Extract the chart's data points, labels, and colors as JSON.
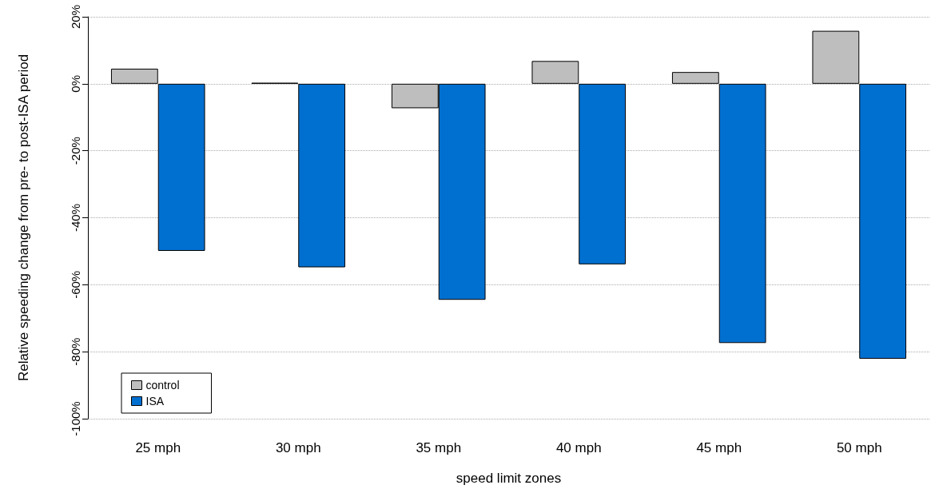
{
  "chart_data": {
    "type": "bar",
    "xlabel": "speed limit zones",
    "ylabel": "Relative speeding change from pre- to post-ISA period",
    "categories": [
      "25 mph",
      "30 mph",
      "35 mph",
      "40 mph",
      "45 mph",
      "50 mph"
    ],
    "series": [
      {
        "name": "control",
        "color": "#bebebe",
        "values": [
          4.5,
          0.3,
          -7.3,
          6.8,
          3.5,
          15.8
        ]
      },
      {
        "name": "ISA",
        "color": "#0070d0",
        "values": [
          -49.9,
          -54.8,
          -64.5,
          -53.9,
          -77.4,
          -82.1
        ]
      }
    ],
    "ylim": [
      -100,
      20
    ],
    "yticks": [
      {
        "value": -100,
        "label": "-100%"
      },
      {
        "value": -80,
        "label": "-80%"
      },
      {
        "value": -60,
        "label": "-60%"
      },
      {
        "value": -40,
        "label": "-40%"
      },
      {
        "value": -20,
        "label": "-20%"
      },
      {
        "value": 0,
        "label": "0%"
      },
      {
        "value": 20,
        "label": "20%"
      }
    ],
    "grid": "y",
    "legend": "bottom left"
  }
}
